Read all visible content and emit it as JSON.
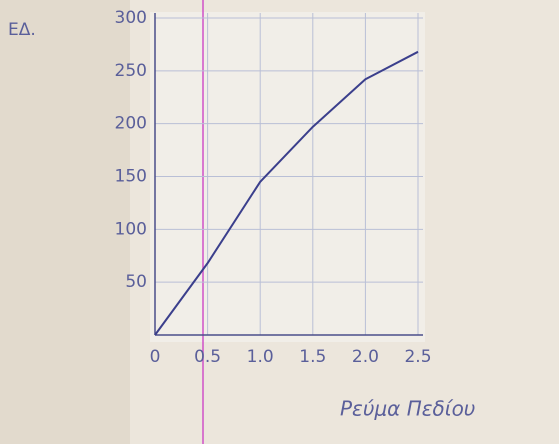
{
  "chart_data": {
    "type": "line",
    "ylabel": "ΕΔ.",
    "xlabel": "Ρεύμα Πεδίου",
    "x": [
      0,
      0.5,
      1,
      1.5,
      2,
      2.5
    ],
    "series": [
      {
        "color": "#3b3f8c",
        "values": [
          0,
          68,
          145,
          197,
          242,
          268
        ]
      }
    ],
    "xlim": [
      0,
      2.5
    ],
    "ylim": [
      0,
      300
    ],
    "xticks": [
      0,
      0.5,
      {
        "value": 1,
        "label": "1.0"
      },
      1.5,
      {
        "value": 2,
        "label": "2.0"
      },
      2.5
    ],
    "yticks": [
      50,
      100,
      150,
      200,
      250,
      300
    ],
    "grid": true
  }
}
